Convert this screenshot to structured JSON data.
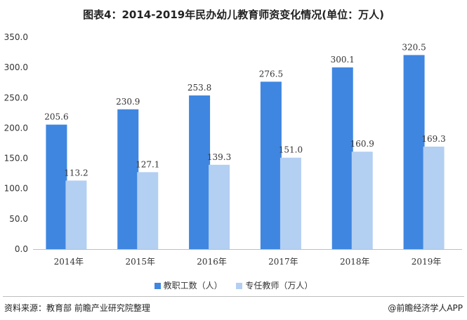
{
  "title": "图表4：2014-2019年民办幼儿教育师资变化情况(单位：万人)",
  "source": "资料来源：教育部 前瞻产业研究院整理",
  "brand": "@前瞻经济学人APP",
  "colors": {
    "series1": "#3f86e0",
    "series2": "#b3cff2",
    "axis": "#bfbfbf"
  },
  "chart_data": {
    "type": "bar",
    "title": "图表4：2014-2019年民办幼儿教育师资变化情况(单位：万人)",
    "categories": [
      "2014年",
      "2015年",
      "2016年",
      "2017年",
      "2018年",
      "2019年"
    ],
    "series": [
      {
        "name": "教职工数（人）",
        "values": [
          205.6,
          230.9,
          253.8,
          276.5,
          300.1,
          320.5
        ],
        "labels": [
          "205.6",
          "230.9",
          "253.8",
          "276.5",
          "300.1",
          "320.5"
        ]
      },
      {
        "name": "专任教师（万人）",
        "values": [
          113.2,
          127.1,
          139.3,
          151.0,
          160.9,
          169.3
        ],
        "labels": [
          "113.2",
          "127.1",
          "139.3",
          "151.0",
          "160.9",
          "169.3"
        ]
      }
    ],
    "ylim": [
      0,
      350
    ],
    "yticks": [
      0,
      50,
      100,
      150,
      200,
      250,
      300,
      350
    ],
    "ytick_labels": [
      "0.0",
      "50.0",
      "100.0",
      "150.0",
      "200.0",
      "250.0",
      "300.0",
      "350.0"
    ],
    "xlabel": "",
    "ylabel": "",
    "grid": false,
    "legend": "bottom"
  }
}
